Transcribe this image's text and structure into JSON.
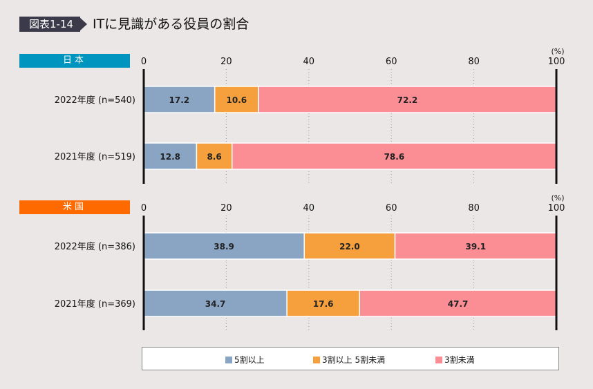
{
  "header": {
    "figure_number": "図表1-14",
    "title": "ITに見識がある役員の割合"
  },
  "legend": [
    "5割以上",
    "3割以上 5割未満",
    "3割未満"
  ],
  "colors": [
    "#8aa5c4",
    "#f5a03c",
    "#fb8d94"
  ],
  "region_colors": [
    "#0095bf",
    "#ff6a00"
  ],
  "chart_data": [
    {
      "type": "bar",
      "stacked": true,
      "orientation": "horizontal",
      "region": "日本",
      "unit_label": "(%)",
      "xlim": [
        0,
        100
      ],
      "ticks": [
        "0",
        "20",
        "40",
        "60",
        "80",
        "100"
      ],
      "grid": true,
      "categories": [
        "2022年度 (n=540)",
        "2021年度 (n=519)"
      ],
      "series": [
        {
          "name": "5割以上",
          "values": [
            17.2,
            12.8
          ]
        },
        {
          "name": "3割以上 5割未満",
          "values": [
            10.6,
            8.6
          ]
        },
        {
          "name": "3割未満",
          "values": [
            72.2,
            78.6
          ]
        }
      ]
    },
    {
      "type": "bar",
      "stacked": true,
      "orientation": "horizontal",
      "region": "米国",
      "unit_label": "(%)",
      "xlim": [
        0,
        100
      ],
      "ticks": [
        "0",
        "20",
        "40",
        "60",
        "80",
        "100"
      ],
      "grid": true,
      "categories": [
        "2022年度 (n=386)",
        "2021年度 (n=369)"
      ],
      "series": [
        {
          "name": "5割以上",
          "values": [
            38.9,
            34.7
          ]
        },
        {
          "name": "3割以上 5割未満",
          "values": [
            22.0,
            17.6
          ]
        },
        {
          "name": "3割未満",
          "values": [
            39.1,
            47.7
          ]
        }
      ]
    }
  ]
}
